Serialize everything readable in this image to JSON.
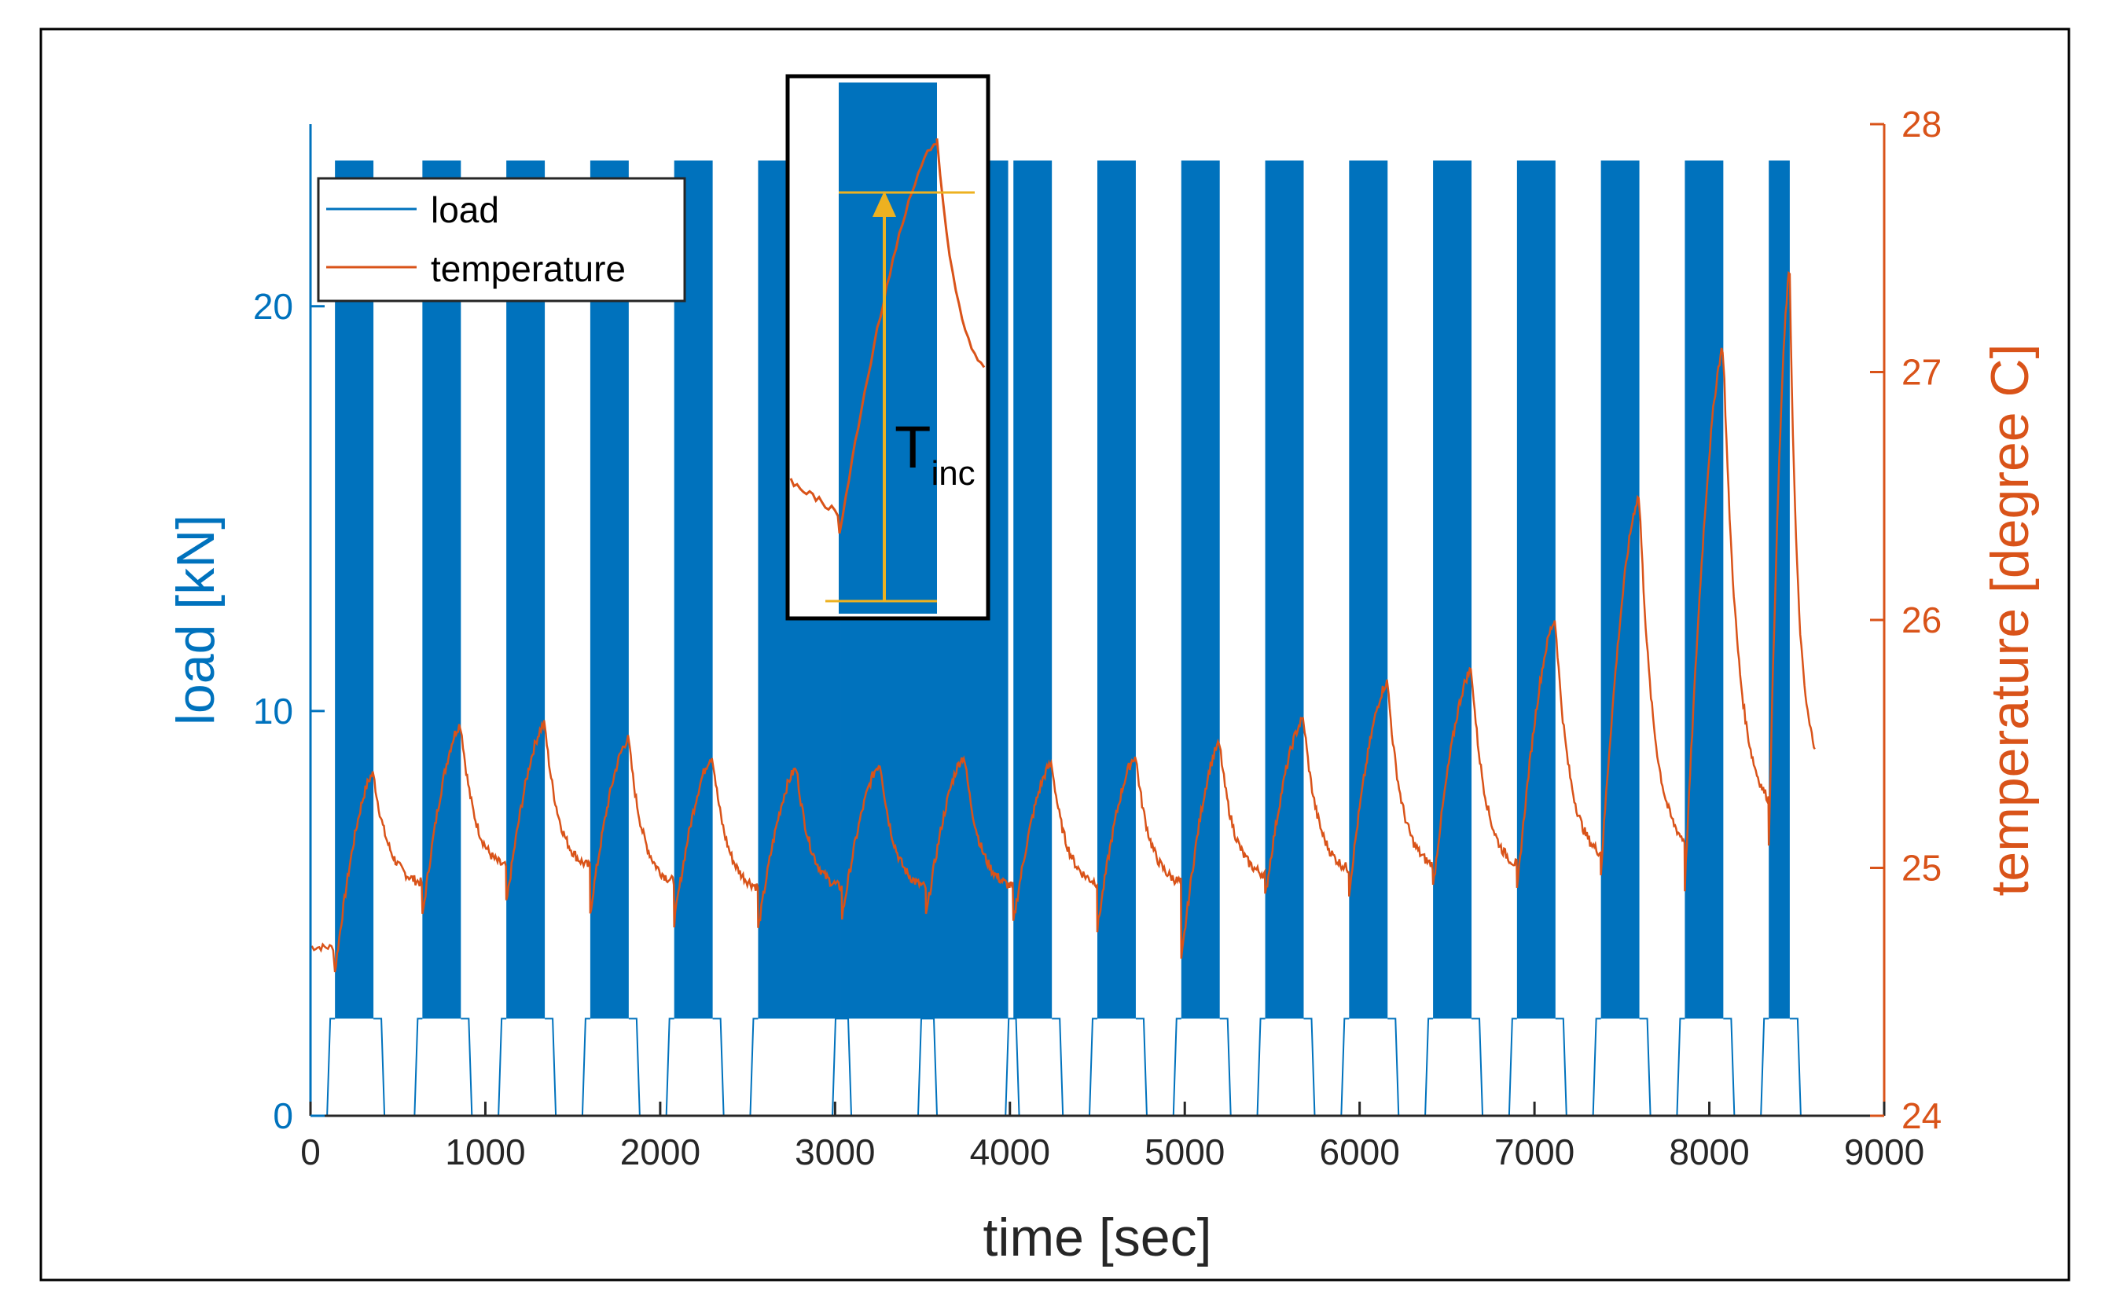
{
  "chart_data": {
    "type": "line",
    "xlabel": "time [sec]",
    "ylabel_left": "load [kN]",
    "ylabel_right": "temperature [degree C]",
    "xlim": [
      0,
      9000
    ],
    "ylim_left": [
      0,
      24.5
    ],
    "ylim_right": [
      24,
      28
    ],
    "x_ticks": [
      "0",
      "1000",
      "2000",
      "3000",
      "4000",
      "5000",
      "6000",
      "7000",
      "8000",
      "9000"
    ],
    "y_left_ticks": [
      "0",
      "10",
      "20"
    ],
    "y_right_ticks": [
      "24",
      "25",
      "26",
      "27",
      "28"
    ],
    "grid": false,
    "legend": {
      "position": "top-left",
      "entries": [
        "load",
        "temperature"
      ]
    },
    "colors": {
      "load": "#0072BD",
      "temperature": "#D95319",
      "annotation": "#EDB120"
    },
    "series": [
      {
        "name": "load",
        "axis": "left",
        "min_kN": 2.4,
        "max_kN": 23.6,
        "cycling_blocks_sec": [
          [
            140,
            360
          ],
          [
            640,
            860
          ],
          [
            1120,
            1340
          ],
          [
            1600,
            1820
          ],
          [
            2080,
            2300
          ],
          [
            2560,
            3030
          ],
          [
            3030,
            3520
          ],
          [
            3520,
            3990
          ],
          [
            4020,
            4240
          ],
          [
            4500,
            4720
          ],
          [
            4980,
            5200
          ],
          [
            5460,
            5680
          ],
          [
            5940,
            6160
          ],
          [
            6420,
            6640
          ],
          [
            6900,
            7120
          ],
          [
            7380,
            7600
          ],
          [
            7860,
            8080
          ],
          [
            8340,
            8460
          ]
        ]
      },
      {
        "name": "temperature",
        "axis": "right",
        "cycles": [
          {
            "start": 140,
            "start_temp": 24.58,
            "peak": 360,
            "peak_temp": 25.38,
            "end_temp": 24.92
          },
          {
            "start": 640,
            "start_temp": 24.8,
            "peak": 860,
            "peak_temp": 25.58,
            "end_temp": 24.98
          },
          {
            "start": 1120,
            "start_temp": 24.85,
            "peak": 1340,
            "peak_temp": 25.58,
            "end_temp": 24.98
          },
          {
            "start": 1600,
            "start_temp": 24.82,
            "peak": 1820,
            "peak_temp": 25.52,
            "end_temp": 24.92
          },
          {
            "start": 2080,
            "start_temp": 24.78,
            "peak": 2300,
            "peak_temp": 25.45,
            "end_temp": 24.9
          },
          {
            "start": 2560,
            "start_temp": 24.75,
            "peak": 2780,
            "peak_temp": 25.4,
            "end_temp": 24.9
          },
          {
            "start": 3040,
            "start_temp": 24.8,
            "peak": 3260,
            "peak_temp": 25.42,
            "end_temp": 24.9
          },
          {
            "start": 3520,
            "start_temp": 24.8,
            "peak": 3740,
            "peak_temp": 25.45,
            "end_temp": 24.9
          },
          {
            "start": 4020,
            "start_temp": 24.78,
            "peak": 4240,
            "peak_temp": 25.42,
            "end_temp": 24.92
          },
          {
            "start": 4500,
            "start_temp": 24.75,
            "peak": 4720,
            "peak_temp": 25.45,
            "end_temp": 24.92
          },
          {
            "start": 4980,
            "start_temp": 24.62,
            "peak": 5200,
            "peak_temp": 25.5,
            "end_temp": 24.95
          },
          {
            "start": 5460,
            "start_temp": 24.88,
            "peak": 5680,
            "peak_temp": 25.6,
            "end_temp": 24.97
          },
          {
            "start": 5940,
            "start_temp": 24.9,
            "peak": 6160,
            "peak_temp": 25.75,
            "end_temp": 24.98
          },
          {
            "start": 6420,
            "start_temp": 24.92,
            "peak": 6640,
            "peak_temp": 25.8,
            "end_temp": 24.98
          },
          {
            "start": 6900,
            "start_temp": 24.9,
            "peak": 7120,
            "peak_temp": 26.0,
            "end_temp": 25.02
          },
          {
            "start": 7380,
            "start_temp": 24.98,
            "peak": 7600,
            "peak_temp": 26.5,
            "end_temp": 25.05
          },
          {
            "start": 7860,
            "start_temp": 24.92,
            "peak": 8080,
            "peak_temp": 27.1,
            "end_temp": 25.2
          },
          {
            "start": 8340,
            "start_temp": 25.1,
            "peak": 8460,
            "peak_temp": 27.4,
            "end_temp": 25.4,
            "end_time": 8610
          }
        ],
        "initial_temp": 24.68
      }
    ],
    "inset": {
      "annotation_label_main": "T",
      "annotation_label_sub": "inc"
    }
  }
}
